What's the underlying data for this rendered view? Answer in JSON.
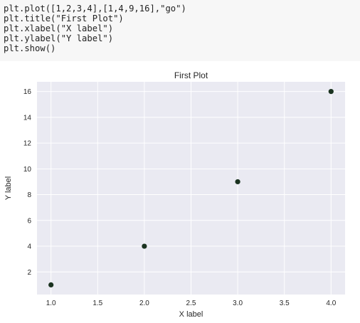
{
  "code_cell": {
    "lines": [
      "plt.plot([1,2,3,4],[1,4,9,16],\"go\")",
      "plt.title(\"First Plot\")",
      "plt.xlabel(\"X label\")",
      "plt.ylabel(\"Y label\")",
      "plt.show()"
    ]
  },
  "chart_data": {
    "type": "scatter",
    "title": "First Plot",
    "xlabel": "X label",
    "ylabel": "Y label",
    "x": [
      1,
      2,
      3,
      4
    ],
    "y": [
      1,
      4,
      9,
      16
    ],
    "xlim": [
      0.85,
      4.15
    ],
    "ylim": [
      0.25,
      16.75
    ],
    "xticks": [
      1.0,
      1.5,
      2.0,
      2.5,
      3.0,
      3.5,
      4.0
    ],
    "xtick_labels": [
      "1.0",
      "1.5",
      "2.0",
      "2.5",
      "3.0",
      "3.5",
      "4.0"
    ],
    "yticks": [
      2,
      4,
      6,
      8,
      10,
      12,
      14,
      16
    ],
    "ytick_labels": [
      "2",
      "4",
      "6",
      "8",
      "10",
      "12",
      "14",
      "16"
    ],
    "grid": true,
    "colors": {
      "plot_background": "#eaeaf2",
      "grid": "#ffffff",
      "marker": "#1b3320",
      "text": "#262626"
    }
  }
}
